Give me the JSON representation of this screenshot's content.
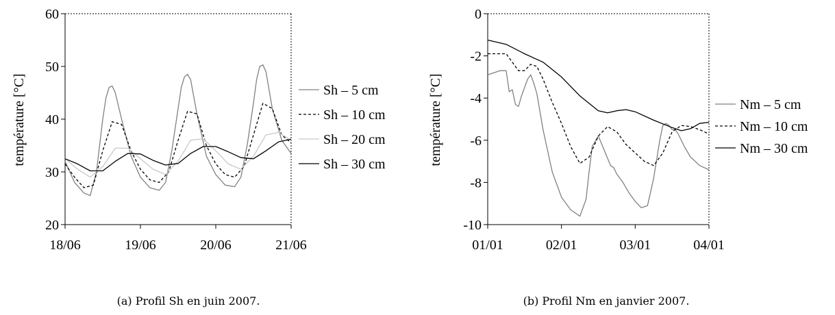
{
  "chart_data": [
    {
      "type": "line",
      "caption": "(a) Profil Sh en juin 2007.",
      "ylabel": "température [°C]",
      "ylim": [
        20,
        60
      ],
      "yticks": [
        20,
        30,
        40,
        50,
        60
      ],
      "xlim": [
        "18/06",
        "21/06"
      ],
      "xticks": [
        "18/06",
        "19/06",
        "20/06",
        "21/06"
      ],
      "legend_position": "right",
      "series": [
        {
          "name": "Sh – 5 cm",
          "color": "#808080",
          "dash": "solid",
          "x": [
            "18/06 00:00",
            "18/06 03:00",
            "18/06 06:00",
            "18/06 08:00",
            "18/06 10:00",
            "18/06 12:00",
            "18/06 13:00",
            "18/06 14:00",
            "18/06 15:00",
            "18/06 16:00",
            "18/06 18:00",
            "18/06 21:00",
            "19/06 00:00",
            "19/06 03:00",
            "19/06 06:00",
            "19/06 08:00",
            "19/06 10:00",
            "19/06 12:00",
            "19/06 13:00",
            "19/06 14:00",
            "19/06 15:00",
            "19/06 16:00",
            "19/06 18:00",
            "19/06 21:00",
            "20/06 00:00",
            "20/06 03:00",
            "20/06 06:00",
            "20/06 08:00",
            "20/06 10:00",
            "20/06 12:00",
            "20/06 13:00",
            "20/06 14:00",
            "20/06 15:00",
            "20/06 16:00",
            "20/06 18:00",
            "20/06 21:00",
            "21/06 00:00"
          ],
          "y": [
            32,
            28,
            26,
            25.5,
            30,
            40,
            44,
            46,
            46.3,
            45,
            40,
            33,
            29,
            27,
            26.5,
            28,
            34,
            42,
            46,
            48,
            48.5,
            47.5,
            41,
            33,
            29.5,
            27.5,
            27.2,
            29,
            35,
            43,
            47.5,
            50,
            50.3,
            49,
            42,
            36,
            33.5
          ]
        },
        {
          "name": "Sh – 10 cm",
          "color": "#000000",
          "dash": "dashed",
          "x": [
            "18/06 00:00",
            "18/06 03:00",
            "18/06 06:00",
            "18/06 09:00",
            "18/06 12:00",
            "18/06 15:00",
            "18/06 18:00",
            "18/06 21:00",
            "19/06 00:00",
            "19/06 03:00",
            "19/06 06:00",
            "19/06 09:00",
            "19/06 12:00",
            "19/06 15:00",
            "19/06 18:00",
            "19/06 21:00",
            "20/06 00:00",
            "20/06 03:00",
            "20/06 06:00",
            "20/06 09:00",
            "20/06 12:00",
            "20/06 15:00",
            "20/06 18:00",
            "20/06 21:00",
            "21/06 00:00"
          ],
          "y": [
            31.5,
            29,
            27,
            27.5,
            34,
            39.5,
            39,
            34,
            30.5,
            28.5,
            28,
            30,
            36,
            41.5,
            41,
            35,
            31.5,
            29.5,
            29,
            31,
            37,
            43,
            42,
            37,
            35.5
          ]
        },
        {
          "name": "Sh – 20 cm",
          "color": "#c8c8c8",
          "dash": "solid",
          "x": [
            "18/06 00:00",
            "18/06 04:00",
            "18/06 08:00",
            "18/06 12:00",
            "18/06 16:00",
            "18/06 20:00",
            "19/06 00:00",
            "19/06 04:00",
            "19/06 08:00",
            "19/06 12:00",
            "19/06 16:00",
            "19/06 20:00",
            "20/06 00:00",
            "20/06 04:00",
            "20/06 08:00",
            "20/06 12:00",
            "20/06 16:00",
            "20/06 20:00",
            "21/06 00:00"
          ],
          "y": [
            32.5,
            30.5,
            29,
            31,
            34.5,
            34.5,
            32.5,
            30.5,
            29.5,
            32,
            36,
            36.3,
            34,
            31.5,
            30.5,
            33,
            37,
            37.5,
            36
          ]
        },
        {
          "name": "Sh – 30 cm",
          "color": "#000000",
          "dash": "solid",
          "x": [
            "18/06 00:00",
            "18/06 04:00",
            "18/06 08:00",
            "18/06 12:00",
            "18/06 16:00",
            "18/06 20:00",
            "19/06 00:00",
            "19/06 04:00",
            "19/06 08:00",
            "19/06 12:00",
            "19/06 16:00",
            "19/06 20:00",
            "20/06 00:00",
            "20/06 04:00",
            "20/06 08:00",
            "20/06 12:00",
            "20/06 16:00",
            "20/06 20:00",
            "21/06 00:00"
          ],
          "y": [
            32.5,
            31.5,
            30.2,
            30.2,
            32,
            33.5,
            33.4,
            32.2,
            31.3,
            31.6,
            33.5,
            34.8,
            34.8,
            33.8,
            32.7,
            32.5,
            34,
            35.7,
            36.2
          ]
        }
      ]
    },
    {
      "type": "line",
      "caption": "(b) Profil Nm en janvier 2007.",
      "ylabel": "température [°C]",
      "ylim": [
        -10,
        0
      ],
      "yticks": [
        -10,
        -8,
        -6,
        -4,
        -2,
        0
      ],
      "xlim": [
        "01/01",
        "04/01"
      ],
      "xticks": [
        "01/01",
        "02/01",
        "03/01",
        "04/01"
      ],
      "legend_position": "right",
      "series": [
        {
          "name": "Nm – 5 cm",
          "color": "#808080",
          "dash": "solid",
          "x": [
            "01/01 00:00",
            "01/01 04:00",
            "01/01 06:00",
            "01/01 07:00",
            "01/01 08:00",
            "01/01 09:00",
            "01/01 10:00",
            "01/01 11:00",
            "01/01 12:00",
            "01/01 13:00",
            "01/01 14:00",
            "01/01 15:00",
            "01/01 16:00",
            "01/01 18:00",
            "01/01 21:00",
            "02/01 00:00",
            "02/01 03:00",
            "02/01 06:00",
            "02/01 08:00",
            "02/01 09:00",
            "02/01 10:00",
            "02/01 12:00",
            "02/01 14:00",
            "02/01 16:00",
            "02/01 17:00",
            "02/01 18:00",
            "02/01 20:00",
            "02/01 22:00",
            "03/01 00:00",
            "03/01 02:00",
            "03/01 04:00",
            "03/01 06:00",
            "03/01 08:00",
            "03/01 09:00",
            "03/01 10:00",
            "03/01 11:00",
            "03/01 12:00",
            "03/01 13:00",
            "03/01 14:00",
            "03/01 16:00",
            "03/01 18:00",
            "03/01 21:00",
            "04/01 00:00"
          ],
          "y": [
            -2.9,
            -2.7,
            -2.7,
            -3.7,
            -3.6,
            -4.3,
            -4.4,
            -3.9,
            -3.5,
            -3.1,
            -2.9,
            -3.3,
            -3.8,
            -5.5,
            -7.5,
            -8.7,
            -9.3,
            -9.6,
            -8.8,
            -7.5,
            -6.3,
            -5.8,
            -6.5,
            -7.2,
            -7.3,
            -7.6,
            -8.0,
            -8.5,
            -8.9,
            -9.2,
            -9.1,
            -7.8,
            -6.0,
            -5.3,
            -5.2,
            -5.3,
            -5.5,
            -5.5,
            -5.7,
            -6.3,
            -6.8,
            -7.2,
            -7.4
          ]
        },
        {
          "name": "Nm – 10 cm",
          "color": "#000000",
          "dash": "dashed",
          "x": [
            "01/01 00:00",
            "01/01 06:00",
            "01/01 10:00",
            "01/01 12:00",
            "01/01 14:00",
            "01/01 16:00",
            "01/01 18:00",
            "01/01 21:00",
            "02/01 00:00",
            "02/01 03:00",
            "02/01 06:00",
            "02/01 09:00",
            "02/01 12:00",
            "02/01 15:00",
            "02/01 18:00",
            "02/01 21:00",
            "03/01 00:00",
            "03/01 03:00",
            "03/01 06:00",
            "03/01 09:00",
            "03/01 12:00",
            "03/01 15:00",
            "03/01 18:00",
            "03/01 21:00",
            "04/01 00:00"
          ],
          "y": [
            -1.9,
            -1.9,
            -2.7,
            -2.7,
            -2.4,
            -2.5,
            -3.1,
            -4.2,
            -5.2,
            -6.3,
            -7.1,
            -6.8,
            -5.8,
            -5.35,
            -5.6,
            -6.2,
            -6.6,
            -7.0,
            -7.2,
            -6.6,
            -5.6,
            -5.3,
            -5.35,
            -5.5,
            -5.7
          ]
        },
        {
          "name": "Nm – 30 cm",
          "color": "#000000",
          "dash": "solid",
          "x": [
            "01/01 00:00",
            "01/01 06:00",
            "01/01 12:00",
            "01/01 18:00",
            "02/01 00:00",
            "02/01 06:00",
            "02/01 12:00",
            "02/01 15:00",
            "02/01 18:00",
            "02/01 21:00",
            "03/01 00:00",
            "03/01 06:00",
            "03/01 12:00",
            "03/01 15:00",
            "03/01 18:00",
            "03/01 21:00",
            "04/01 00:00"
          ],
          "y": [
            -1.25,
            -1.45,
            -1.9,
            -2.3,
            -3.0,
            -3.9,
            -4.6,
            -4.7,
            -4.6,
            -4.55,
            -4.65,
            -5.05,
            -5.4,
            -5.55,
            -5.45,
            -5.2,
            -5.15
          ]
        }
      ]
    }
  ]
}
